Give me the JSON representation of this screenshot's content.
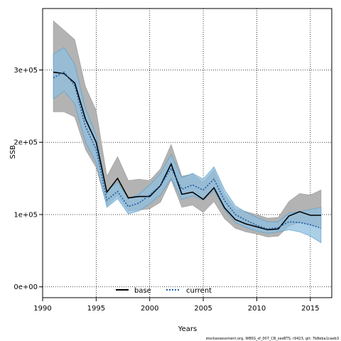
{
  "chart_data": {
    "type": "line",
    "title": "",
    "xlabel": "Years",
    "ylabel": "SSB",
    "xlim": [
      1990,
      2017
    ],
    "ylim": [
      -15000,
      385000
    ],
    "x_ticks": [
      1990,
      1995,
      2000,
      2005,
      2010,
      2015
    ],
    "y_ticks": [
      0,
      100000,
      200000,
      300000
    ],
    "y_tick_labels": [
      "0e+00",
      "1e+05",
      "2e+05",
      "3e+05"
    ],
    "grid": true,
    "legend_position": "bottom-center",
    "x": [
      1991,
      1992,
      1993,
      1994,
      1995,
      1996,
      1997,
      1998,
      1999,
      2000,
      2001,
      2002,
      2003,
      2004,
      2005,
      2006,
      2007,
      2008,
      2009,
      2010,
      2011,
      2012,
      2013,
      2014,
      2015,
      2016
    ],
    "series": [
      {
        "name": "base",
        "color": "#000000",
        "dash": "solid",
        "values": [
          297000,
          295000,
          282000,
          232000,
          200000,
          131000,
          150000,
          123000,
          125000,
          125000,
          140000,
          170000,
          128000,
          131000,
          121000,
          137000,
          109000,
          93000,
          87000,
          83000,
          79000,
          80000,
          98000,
          104000,
          99000,
          99000
        ],
        "lower": [
          242000,
          242000,
          235000,
          190000,
          165000,
          112000,
          126000,
          105000,
          106000,
          108000,
          117000,
          148000,
          110000,
          113000,
          103000,
          118000,
          94000,
          81000,
          76000,
          73000,
          69000,
          70000,
          84000,
          89000,
          85000,
          83000
        ],
        "upper": [
          368000,
          355000,
          342000,
          277000,
          244000,
          153000,
          180000,
          147000,
          149000,
          147000,
          163000,
          197000,
          153000,
          156000,
          145000,
          162000,
          128000,
          108000,
          104000,
          100000,
          95000,
          96000,
          118000,
          129000,
          127000,
          134000
        ],
        "band_color": "#b3b3b3"
      },
      {
        "name": "current",
        "color": "#1f5da8",
        "dash": "dotted",
        "values": [
          289000,
          297000,
          278000,
          222000,
          190000,
          120000,
          132000,
          111000,
          116000,
          127000,
          140000,
          164000,
          135000,
          141000,
          134000,
          149000,
          119000,
          100000,
          92000,
          85000,
          80000,
          82000,
          90000,
          89000,
          86000,
          81000
        ],
        "lower": [
          260000,
          271000,
          253000,
          200000,
          172000,
          110000,
          122000,
          101000,
          105000,
          115000,
          127000,
          150000,
          121000,
          126000,
          120000,
          133000,
          106000,
          89000,
          82000,
          77000,
          74000,
          76000,
          79000,
          76000,
          70000,
          61000
        ],
        "upper": [
          322000,
          331000,
          308000,
          247000,
          210000,
          132000,
          145000,
          122000,
          128000,
          141000,
          157000,
          183000,
          151000,
          157000,
          149000,
          166000,
          134000,
          112000,
          103000,
          96000,
          90000,
          90000,
          102000,
          104000,
          107000,
          110000
        ],
        "band_color": "#8fbfdf"
      }
    ]
  },
  "footer_text": "stockassessment.org, WBSS_sf_007_CB_sesBTS, r9423, git: 7b8eba1caeb3"
}
